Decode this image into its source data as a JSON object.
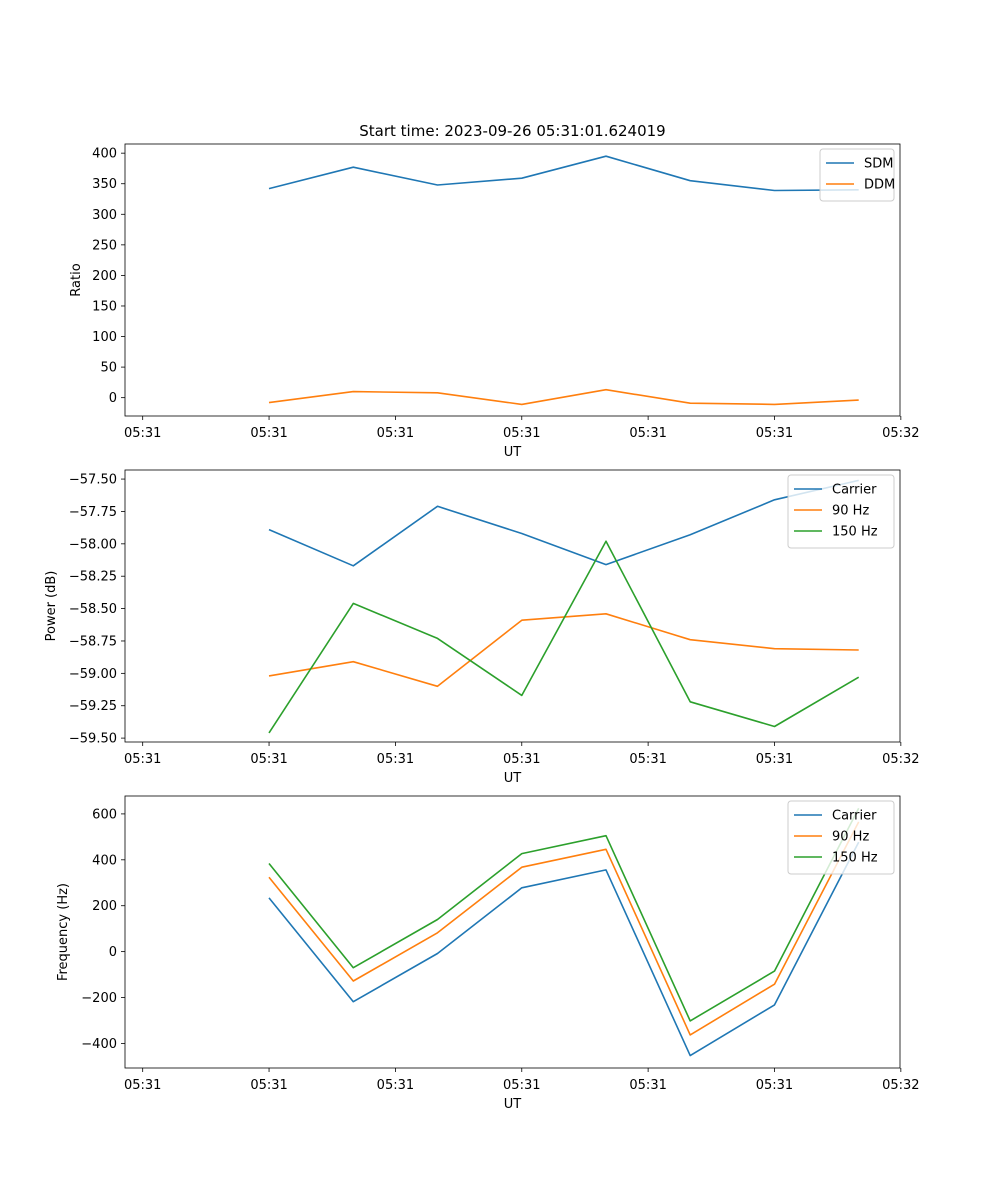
{
  "figure_title": "Start time: 2023-09-26 05:31:01.624019",
  "chart_data": [
    {
      "type": "line",
      "title": "Start time: 2023-09-26 05:31:01.624019",
      "xlabel": "UT",
      "ylabel": "Ratio",
      "x": [
        1,
        2,
        3,
        4,
        5,
        6,
        7,
        8
      ],
      "xlim": [
        -0.71,
        8.49
      ],
      "xticks": [
        -0.5,
        1.0,
        2.5,
        4.0,
        5.5,
        7.0,
        8.5
      ],
      "xtick_labels": [
        "05:31",
        "05:31",
        "05:31",
        "05:31",
        "05:31",
        "05:31",
        "05:32"
      ],
      "ylim": [
        -30,
        415
      ],
      "yticks": [
        0,
        50,
        100,
        150,
        200,
        250,
        300,
        350,
        400
      ],
      "ytick_labels": [
        "0",
        "50",
        "100",
        "150",
        "200",
        "250",
        "300",
        "350",
        "400"
      ],
      "legend_position": "top-right",
      "series": [
        {
          "name": "SDM",
          "color": "#1f77b4",
          "values": [
            342,
            377,
            348,
            359,
            395,
            355,
            339,
            340
          ]
        },
        {
          "name": "DDM",
          "color": "#ff7f0e",
          "values": [
            -8,
            10,
            8,
            -11,
            13,
            -9,
            -11,
            -4
          ]
        }
      ]
    },
    {
      "type": "line",
      "title": "",
      "xlabel": "UT",
      "ylabel": "Power (dB)",
      "x": [
        1,
        2,
        3,
        4,
        5,
        6,
        7,
        8
      ],
      "xlim": [
        -0.71,
        8.49
      ],
      "xticks": [
        -0.5,
        1.0,
        2.5,
        4.0,
        5.5,
        7.0,
        8.5
      ],
      "xtick_labels": [
        "05:31",
        "05:31",
        "05:31",
        "05:31",
        "05:31",
        "05:31",
        "05:32"
      ],
      "ylim": [
        -59.53,
        -57.43
      ],
      "yticks": [
        -59.5,
        -59.25,
        -59.0,
        -58.75,
        -58.5,
        -58.25,
        -58.0,
        -57.75,
        -57.5
      ],
      "ytick_labels": [
        "−59.50",
        "−59.25",
        "−59.00",
        "−58.75",
        "−58.50",
        "−58.25",
        "−58.00",
        "−57.75",
        "−57.50"
      ],
      "legend_position": "top-right",
      "series": [
        {
          "name": "Carrier",
          "color": "#1f77b4",
          "values": [
            -57.89,
            -58.17,
            -57.71,
            -57.92,
            -58.16,
            -57.93,
            -57.66,
            -57.51
          ]
        },
        {
          "name": "90 Hz",
          "color": "#ff7f0e",
          "values": [
            -59.02,
            -58.91,
            -59.1,
            -58.59,
            -58.54,
            -58.74,
            -58.81,
            -58.82
          ]
        },
        {
          "name": "150 Hz",
          "color": "#2ca02c",
          "values": [
            -59.46,
            -58.46,
            -58.73,
            -59.17,
            -57.98,
            -59.22,
            -59.41,
            -59.03
          ]
        }
      ]
    },
    {
      "type": "line",
      "title": "",
      "xlabel": "UT",
      "ylabel": "Frequency (Hz)",
      "x": [
        1,
        2,
        3,
        4,
        5,
        6,
        7,
        8
      ],
      "xlim": [
        -0.71,
        8.49
      ],
      "xticks": [
        -0.5,
        1.0,
        2.5,
        4.0,
        5.5,
        7.0,
        8.5
      ],
      "xtick_labels": [
        "05:31",
        "05:31",
        "05:31",
        "05:31",
        "05:31",
        "05:31",
        "05:32"
      ],
      "ylim": [
        -507,
        678
      ],
      "yticks": [
        -400,
        -200,
        0,
        200,
        400,
        600
      ],
      "ytick_labels": [
        "−400",
        "−200",
        "0",
        "200",
        "400",
        "600"
      ],
      "legend_position": "top-right",
      "series": [
        {
          "name": "Carrier",
          "color": "#1f77b4",
          "values": [
            234,
            -218,
            -8,
            278,
            356,
            -453,
            -232,
            477
          ]
        },
        {
          "name": "90 Hz",
          "color": "#ff7f0e",
          "values": [
            324,
            -128,
            82,
            368,
            446,
            -363,
            -142,
            565
          ]
        },
        {
          "name": "150 Hz",
          "color": "#2ca02c",
          "values": [
            384,
            -70,
            140,
            427,
            505,
            -302,
            -85,
            625
          ]
        }
      ]
    }
  ]
}
